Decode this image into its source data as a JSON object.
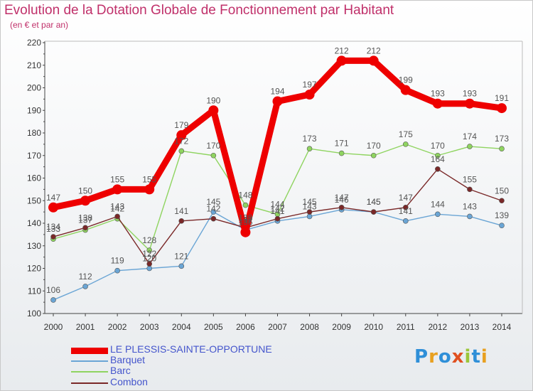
{
  "title": "Evolution de la Dotation Globale de Fonctionnement par Habitant",
  "subtitle": "(en € et par an)",
  "logo": {
    "letters": [
      "P",
      "r",
      "o",
      "x",
      "i",
      "t",
      "i"
    ],
    "colors": [
      "#2f8fd8",
      "#e8a020",
      "#2f8fd8",
      "#e05020",
      "#9cc63a",
      "#2f8fd8",
      "#e8a020"
    ]
  },
  "chart_data": {
    "type": "line",
    "title": "Evolution de la Dotation Globale de Fonctionnement par Habitant",
    "ylabel": "(en € et par an)",
    "x": [
      "2000",
      "2001",
      "2002",
      "2003",
      "2004",
      "2005",
      "2006",
      "2007",
      "2008",
      "2009",
      "2010",
      "2011",
      "2012",
      "2013",
      "2014"
    ],
    "ylim": [
      100,
      220
    ],
    "yticks": [
      "100",
      "110",
      "120",
      "130",
      "140",
      "150",
      "160",
      "170",
      "180",
      "190",
      "200",
      "210",
      "220"
    ],
    "series": [
      {
        "name": "LE PLESSIS-SAINTE-OPPORTUNE",
        "color": "#ee0000",
        "values": [
          147,
          150,
          155,
          155,
          179,
          190,
          136,
          194,
          197,
          212,
          212,
          199,
          193,
          193,
          191
        ],
        "labels": [
          "147",
          "150",
          "155",
          "155",
          "179",
          "190",
          "136",
          "194",
          "197",
          "212",
          "212",
          "199",
          "193",
          "193",
          "191"
        ]
      },
      {
        "name": "Barquet",
        "color": "#6aa5d5",
        "values": [
          106,
          112,
          119,
          120,
          121,
          145,
          137,
          141,
          143,
          146,
          145,
          141,
          144,
          143,
          139
        ],
        "labels": [
          "106",
          "112",
          "119",
          "120",
          "121",
          "145",
          "137",
          "141",
          "143",
          "146",
          "145",
          "141",
          "144",
          "143",
          "139"
        ]
      },
      {
        "name": "Barc",
        "color": "#8fd460",
        "values": [
          133,
          137,
          142,
          128,
          172,
          170,
          148,
          144,
          173,
          171,
          170,
          175,
          170,
          174,
          173
        ],
        "labels": [
          "133",
          "137",
          "142",
          "128",
          "172",
          "170",
          "148",
          "144",
          "173",
          "171",
          "170",
          "175",
          "170",
          "174",
          "173"
        ]
      },
      {
        "name": "Combon",
        "color": "#7a2828",
        "values": [
          134,
          138,
          143,
          122,
          141,
          142,
          138,
          142,
          145,
          147,
          145,
          147,
          164,
          155,
          150
        ],
        "labels": [
          "134",
          "138",
          "143",
          "122",
          "141",
          "142",
          "138",
          "142",
          "145",
          "147",
          "145",
          "147",
          "164",
          "155",
          "150"
        ]
      }
    ],
    "legend": "bottom-left",
    "grid": false
  }
}
